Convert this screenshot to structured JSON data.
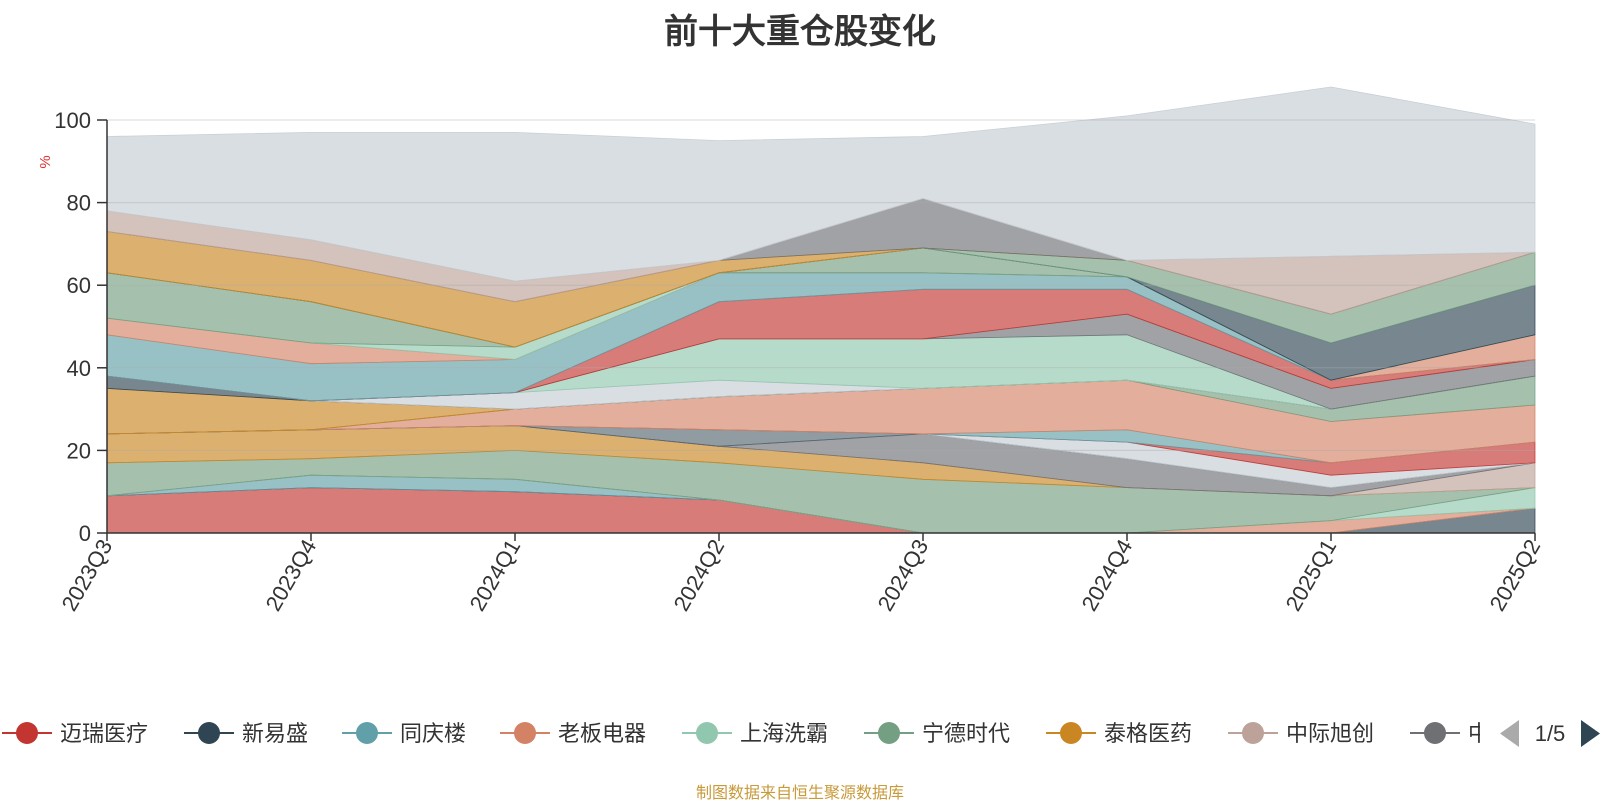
{
  "chart_data": {
    "type": "area",
    "title": "前十大重仓股变化",
    "ylabel": "%",
    "ylim": [
      0,
      100
    ],
    "yticks": [
      0,
      20,
      40,
      60,
      80,
      100
    ],
    "grid": true,
    "x": [
      "2023Q3",
      "2023Q4",
      "2024Q1",
      "2024Q2",
      "2024Q3",
      "2024Q4",
      "2025Q1",
      "2025Q2"
    ],
    "legend_position": "bottom",
    "legend_page": "1/5",
    "series": [
      {
        "name": "迈瑞医疗",
        "color": "#c23531",
        "values": [
          9,
          11,
          10,
          8,
          0,
          0,
          0,
          0
        ]
      },
      {
        "name": "新易盛",
        "color": "#2f4554",
        "values": [
          0,
          0,
          0,
          0,
          0,
          0,
          0,
          6
        ]
      },
      {
        "name": "同庆楼",
        "color": "#61a0a8",
        "values": [
          0,
          3,
          3,
          0,
          0,
          0,
          0,
          0
        ]
      },
      {
        "name": "老板电器",
        "color": "#d48265",
        "values": [
          0,
          0,
          0,
          0,
          0,
          0,
          3,
          0
        ]
      },
      {
        "name": "上海洗霸",
        "color": "#91c7ae",
        "values": [
          0,
          0,
          0,
          0,
          0,
          0,
          0,
          5
        ]
      },
      {
        "name": "宁德时代",
        "color": "#749f83",
        "values": [
          8,
          4,
          7,
          9,
          13,
          11,
          6,
          0
        ]
      },
      {
        "name": "泰格医药",
        "color": "#ca8622",
        "values": [
          7,
          7,
          6,
          4,
          4,
          0,
          0,
          0
        ]
      },
      {
        "name": "中际旭创",
        "color": "#bda29a",
        "values": [
          0,
          0,
          0,
          0,
          0,
          0,
          0,
          6
        ]
      },
      {
        "name": "中国",
        "color": "#6e7074",
        "values": [
          0,
          0,
          0,
          0,
          7,
          7,
          2,
          0
        ]
      },
      {
        "name": "",
        "color": "#546570",
        "values": [
          0,
          0,
          0,
          4,
          0,
          0,
          0,
          0
        ]
      },
      {
        "name": "",
        "color": "#c4ccd3",
        "values": [
          0,
          0,
          0,
          0,
          0,
          4,
          3,
          0
        ]
      },
      {
        "name": "",
        "color": "#c23531",
        "values": [
          0,
          0,
          0,
          0,
          0,
          0,
          3,
          5
        ]
      },
      {
        "name": "",
        "color": "#61a0a8",
        "values": [
          0,
          0,
          0,
          0,
          0,
          3,
          0,
          0
        ]
      },
      {
        "name": "",
        "color": "#d48265",
        "values": [
          0,
          0,
          4,
          8,
          11,
          12,
          10,
          9
        ]
      },
      {
        "name": "",
        "color": "#749f83",
        "values": [
          0,
          0,
          0,
          0,
          0,
          0,
          3,
          7
        ]
      },
      {
        "name": "",
        "color": "#ca8622",
        "values": [
          11,
          7,
          0,
          0,
          0,
          0,
          0,
          0
        ]
      },
      {
        "name": "",
        "color": "#2f4554",
        "values": [
          3,
          0,
          0,
          0,
          0,
          0,
          0,
          0
        ]
      },
      {
        "name": "",
        "color": "#c4ccd3",
        "values": [
          0,
          0,
          4,
          4,
          0,
          0,
          0,
          0
        ]
      },
      {
        "name": "",
        "color": "#91c7ae",
        "values": [
          0,
          0,
          0,
          10,
          12,
          11,
          0,
          0
        ]
      },
      {
        "name": "",
        "color": "#6e7074",
        "values": [
          0,
          0,
          0,
          0,
          0,
          5,
          5,
          4
        ]
      },
      {
        "name": "",
        "color": "#c23531",
        "values": [
          0,
          0,
          0,
          9,
          12,
          6,
          2,
          0
        ]
      },
      {
        "name": "",
        "color": "#61a0a8",
        "values": [
          10,
          9,
          8,
          7,
          4,
          3,
          0,
          0
        ]
      },
      {
        "name": "",
        "color": "#d48265",
        "values": [
          4,
          5,
          0,
          0,
          0,
          0,
          0,
          6
        ]
      },
      {
        "name": "",
        "color": "#91c7ae",
        "values": [
          0,
          0,
          3,
          0,
          0,
          0,
          0,
          0
        ]
      },
      {
        "name": "",
        "color": "#749f83",
        "values": [
          11,
          10,
          0,
          0,
          6,
          0,
          0,
          0
        ]
      },
      {
        "name": "",
        "color": "#2f4554",
        "values": [
          0,
          0,
          0,
          0,
          0,
          0,
          9,
          12
        ]
      },
      {
        "name": "",
        "color": "#749f83",
        "values": [
          0,
          0,
          0,
          0,
          0,
          4,
          7,
          8
        ]
      },
      {
        "name": "",
        "color": "#ca8622",
        "values": [
          10,
          10,
          11,
          3,
          0,
          0,
          0,
          0
        ]
      },
      {
        "name": "",
        "color": "#6e7074",
        "values": [
          0,
          0,
          0,
          0,
          12,
          0,
          0,
          0
        ]
      },
      {
        "name": "",
        "color": "#bda29a",
        "values": [
          5,
          5,
          5,
          0,
          0,
          0,
          14,
          0
        ]
      },
      {
        "name": "",
        "color": "#c4ccd3",
        "values": [
          18,
          26,
          36,
          29,
          15,
          35,
          41,
          31
        ]
      }
    ]
  },
  "legend": {
    "items": [
      {
        "name": "迈瑞医疗",
        "color": "#c23531"
      },
      {
        "name": "新易盛",
        "color": "#2f4554"
      },
      {
        "name": "同庆楼",
        "color": "#61a0a8"
      },
      {
        "name": "老板电器",
        "color": "#d48265"
      },
      {
        "name": "上海洗霸",
        "color": "#91c7ae"
      },
      {
        "name": "宁德时代",
        "color": "#749f83"
      },
      {
        "name": "泰格医药",
        "color": "#ca8622"
      },
      {
        "name": "中际旭创",
        "color": "#bda29a"
      },
      {
        "name": "中国",
        "color": "#6e7074"
      }
    ],
    "page": "1/5"
  },
  "footer": {
    "source": "制图数据来自恒生聚源数据库"
  }
}
